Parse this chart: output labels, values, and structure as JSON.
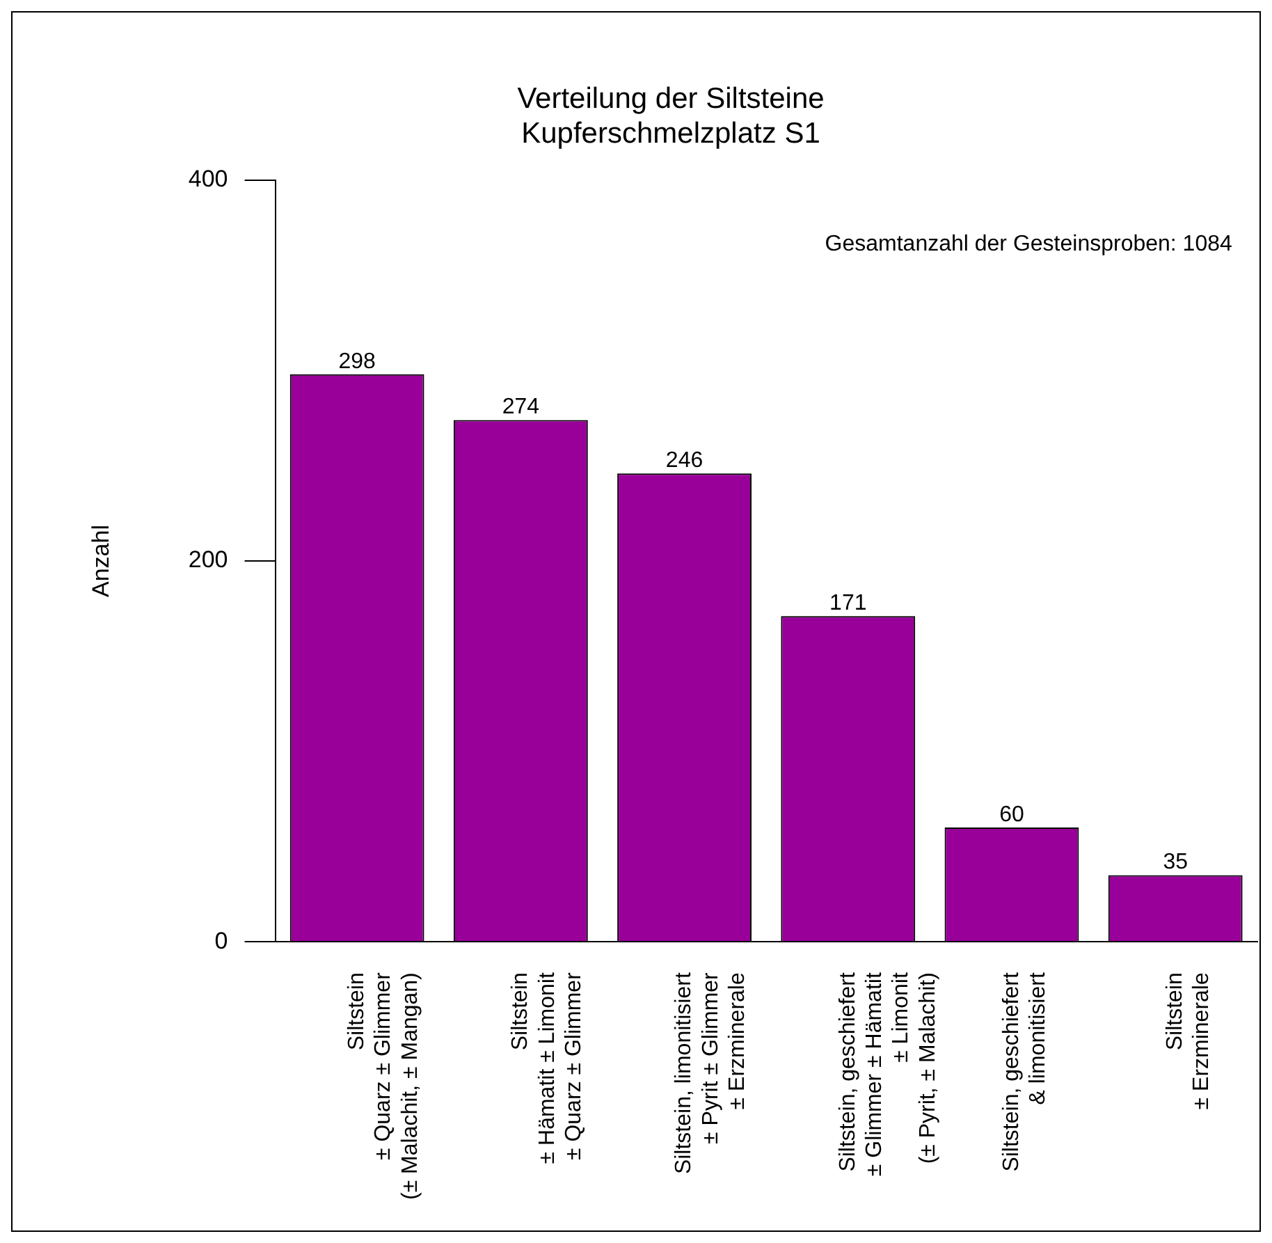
{
  "chart_data": {
    "type": "bar",
    "title": "Verteilung der Siltsteine\nKupferschmelzplatz S1",
    "ylabel": "Anzahl",
    "categories": [
      "Siltstein\n± Quarz ± Glimmer\n(± Malachit, ± Mangan)",
      "Siltstein\n± Hämatit ± Limonit\n± Quarz ± Glimmer",
      "Siltstein, limonitisiert\n± Pyrit ± Glimmer\n± Erzminerale",
      "Siltstein, geschiefert\n± Glimmer ± Hämatit\n± Limonit\n(± Pyrit, ± Malachit)",
      "Siltstein, geschiefert\n& limonitisiert",
      "Siltstein\n± Erzminerale"
    ],
    "values": [
      298,
      274,
      246,
      171,
      60,
      35
    ],
    "color": "#990099",
    "ylim": [
      0,
      400
    ],
    "yticks": [
      0,
      200,
      400
    ],
    "grid": false,
    "legend": false,
    "data_labels": true,
    "annotations": [
      "Gesamtanzahl der Gesteinsproben: 1084"
    ]
  }
}
